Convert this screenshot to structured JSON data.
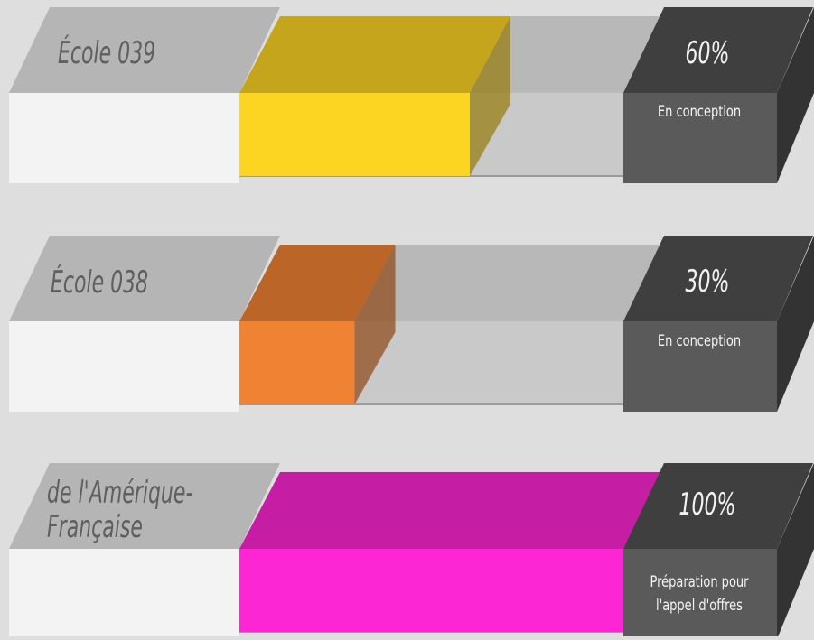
{
  "chart_data": {
    "type": "bar",
    "orientation": "horizontal",
    "xlim": [
      0,
      100
    ],
    "categories": [
      "École 039",
      "École 038",
      "de l'Amérique-\nFrançaise"
    ],
    "values": [
      60,
      30,
      100
    ],
    "value_labels": [
      "60%",
      "30%",
      "100%"
    ],
    "status": [
      "En conception",
      "En conception",
      "Préparation pour\nl'appel d'offres"
    ],
    "colors": [
      "#fcd422",
      "#f08233",
      "#fc26d4"
    ]
  }
}
